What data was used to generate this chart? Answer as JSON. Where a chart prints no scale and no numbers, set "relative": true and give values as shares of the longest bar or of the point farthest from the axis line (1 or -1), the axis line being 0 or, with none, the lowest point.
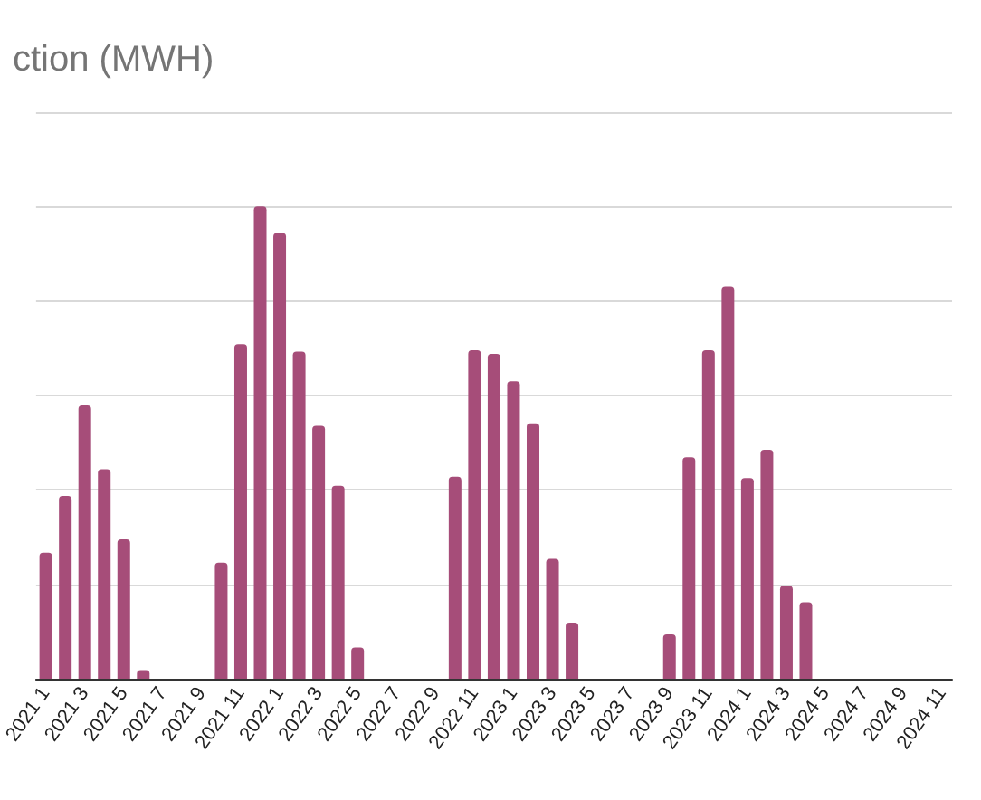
{
  "chart_data": {
    "type": "bar",
    "title": "ction (MWH)",
    "categories": [
      "2021 1",
      null,
      "2021 3",
      null,
      "2021 5",
      null,
      "2021 7",
      null,
      "2021 9",
      null,
      "2021 11",
      null,
      "2022 1",
      null,
      "2022 3",
      null,
      "2022 5",
      null,
      "2022 7",
      null,
      "2022 9",
      null,
      "2022 11",
      null,
      "2023 1",
      null,
      "2023 3",
      null,
      "2023 5",
      null,
      "2023 7",
      null,
      "2023 9",
      null,
      "2023 11",
      null,
      "2024 1",
      null,
      "2024 3",
      null,
      "2024 5",
      null,
      "2024 7",
      null,
      "2024 9",
      null,
      "2024 11"
    ],
    "series": [
      {
        "color": "#a64d79",
        "values": [
          0.267,
          0.387,
          0.579,
          0.444,
          0.295,
          0.018,
          0,
          0,
          0,
          0.246,
          0.709,
          1,
          0.944,
          0.693,
          0.536,
          0.409,
          0.066,
          0,
          0,
          0,
          0,
          0.428,
          0.696,
          0.688,
          0.63,
          0.541,
          0.254,
          0.119,
          0,
          0,
          0,
          0,
          0.094,
          0.469,
          0.696,
          0.831,
          0.425,
          0.485,
          0.197,
          0.162,
          0,
          0,
          0,
          0,
          0,
          0,
          0
        ]
      }
    ],
    "relative": true,
    "grid": "y"
  }
}
